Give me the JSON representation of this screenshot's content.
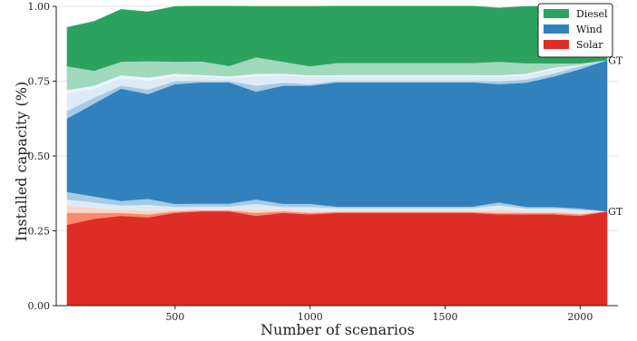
{
  "chart_data": {
    "type": "area",
    "xlabel": "Number of scenarios",
    "ylabel": "Installed capacity (%)",
    "xlim": [
      60,
      2140
    ],
    "ylim": [
      0.0,
      1.0
    ],
    "x_ticks": [
      500,
      1000,
      1500,
      2000
    ],
    "y_ticks": [
      0.0,
      0.25,
      0.5,
      0.75,
      1.0
    ],
    "y_tick_labels": [
      "0.00",
      "0.25",
      "0.50",
      "0.75",
      "1.00"
    ],
    "grid": true,
    "legend_position": "top-right",
    "x": [
      100,
      200,
      300,
      400,
      500,
      600,
      700,
      800,
      900,
      1000,
      1100,
      1200,
      1300,
      1400,
      1500,
      1600,
      1700,
      1800,
      1900,
      2000,
      2100
    ],
    "series": [
      {
        "name": "Solar",
        "legend": true,
        "color": "#de2d26",
        "values": [
          0.27,
          0.29,
          0.3,
          0.295,
          0.31,
          0.315,
          0.315,
          0.3,
          0.31,
          0.305,
          0.31,
          0.31,
          0.31,
          0.31,
          0.31,
          0.31,
          0.305,
          0.305,
          0.305,
          0.3,
          0.315
        ]
      },
      {
        "color": "#fb8a6e",
        "values": [
          0.04,
          0.02,
          0.01,
          0.01,
          0.005,
          0.003,
          0.003,
          0.01,
          0.005,
          0.005,
          0.003,
          0.003,
          0.003,
          0.003,
          0.003,
          0.003,
          0.005,
          0.005,
          0.005,
          0.005,
          0.0
        ]
      },
      {
        "color": "#fdd5c4",
        "values": [
          0.025,
          0.015,
          0.01,
          0.012,
          0.005,
          0.003,
          0.003,
          0.01,
          0.005,
          0.005,
          0.003,
          0.003,
          0.003,
          0.003,
          0.003,
          0.003,
          0.01,
          0.005,
          0.005,
          0.005,
          0.0
        ]
      },
      {
        "color": "#deebf7",
        "values": [
          0.02,
          0.02,
          0.015,
          0.02,
          0.01,
          0.01,
          0.01,
          0.02,
          0.01,
          0.015,
          0.01,
          0.01,
          0.01,
          0.01,
          0.01,
          0.01,
          0.015,
          0.01,
          0.01,
          0.01,
          0.0
        ]
      },
      {
        "color": "#a6cbe3",
        "values": [
          0.025,
          0.02,
          0.015,
          0.02,
          0.01,
          0.01,
          0.01,
          0.015,
          0.01,
          0.01,
          0.005,
          0.005,
          0.005,
          0.005,
          0.005,
          0.005,
          0.01,
          0.005,
          0.005,
          0.005,
          0.0
        ]
      },
      {
        "name": "Wind",
        "legend": true,
        "color": "#3181bd",
        "values": [
          0.245,
          0.31,
          0.375,
          0.35,
          0.4,
          0.405,
          0.405,
          0.36,
          0.395,
          0.395,
          0.415,
          0.415,
          0.415,
          0.415,
          0.415,
          0.415,
          0.395,
          0.415,
          0.435,
          0.465,
          0.505
        ]
      },
      {
        "color": "#a6cbe3",
        "values": [
          0.025,
          0.02,
          0.01,
          0.015,
          0.01,
          0.005,
          0.005,
          0.02,
          0.01,
          0.005,
          0.005,
          0.005,
          0.005,
          0.005,
          0.005,
          0.005,
          0.01,
          0.01,
          0.01,
          0.01,
          0.0
        ]
      },
      {
        "color": "#deebf7",
        "values": [
          0.06,
          0.03,
          0.025,
          0.03,
          0.015,
          0.015,
          0.01,
          0.03,
          0.025,
          0.025,
          0.015,
          0.015,
          0.015,
          0.015,
          0.015,
          0.015,
          0.015,
          0.015,
          0.015,
          0.005,
          0.0
        ]
      },
      {
        "color": "#eff5fb",
        "values": [
          0.01,
          0.01,
          0.01,
          0.01,
          0.01,
          0.005,
          0.005,
          0.01,
          0.005,
          0.005,
          0.005,
          0.005,
          0.005,
          0.005,
          0.005,
          0.005,
          0.005,
          0.005,
          0.005,
          0.0,
          0.0
        ]
      },
      {
        "color": "#a1d9bd",
        "values": [
          0.08,
          0.05,
          0.045,
          0.055,
          0.04,
          0.045,
          0.035,
          0.055,
          0.04,
          0.03,
          0.04,
          0.04,
          0.04,
          0.04,
          0.04,
          0.04,
          0.045,
          0.035,
          0.015,
          0.005,
          0.0
        ]
      },
      {
        "name": "Diesel",
        "legend": true,
        "color": "#2ca25f",
        "values": [
          0.13,
          0.165,
          0.175,
          0.165,
          0.185,
          0.185,
          0.2,
          0.17,
          0.185,
          0.2,
          0.19,
          0.19,
          0.19,
          0.19,
          0.19,
          0.19,
          0.18,
          0.19,
          0.19,
          0.19,
          0.18
        ]
      }
    ],
    "annotations": [
      {
        "text": "GT",
        "x": 2100,
        "y": 0.315
      },
      {
        "text": "GT",
        "x": 2100,
        "y": 0.82
      }
    ]
  }
}
